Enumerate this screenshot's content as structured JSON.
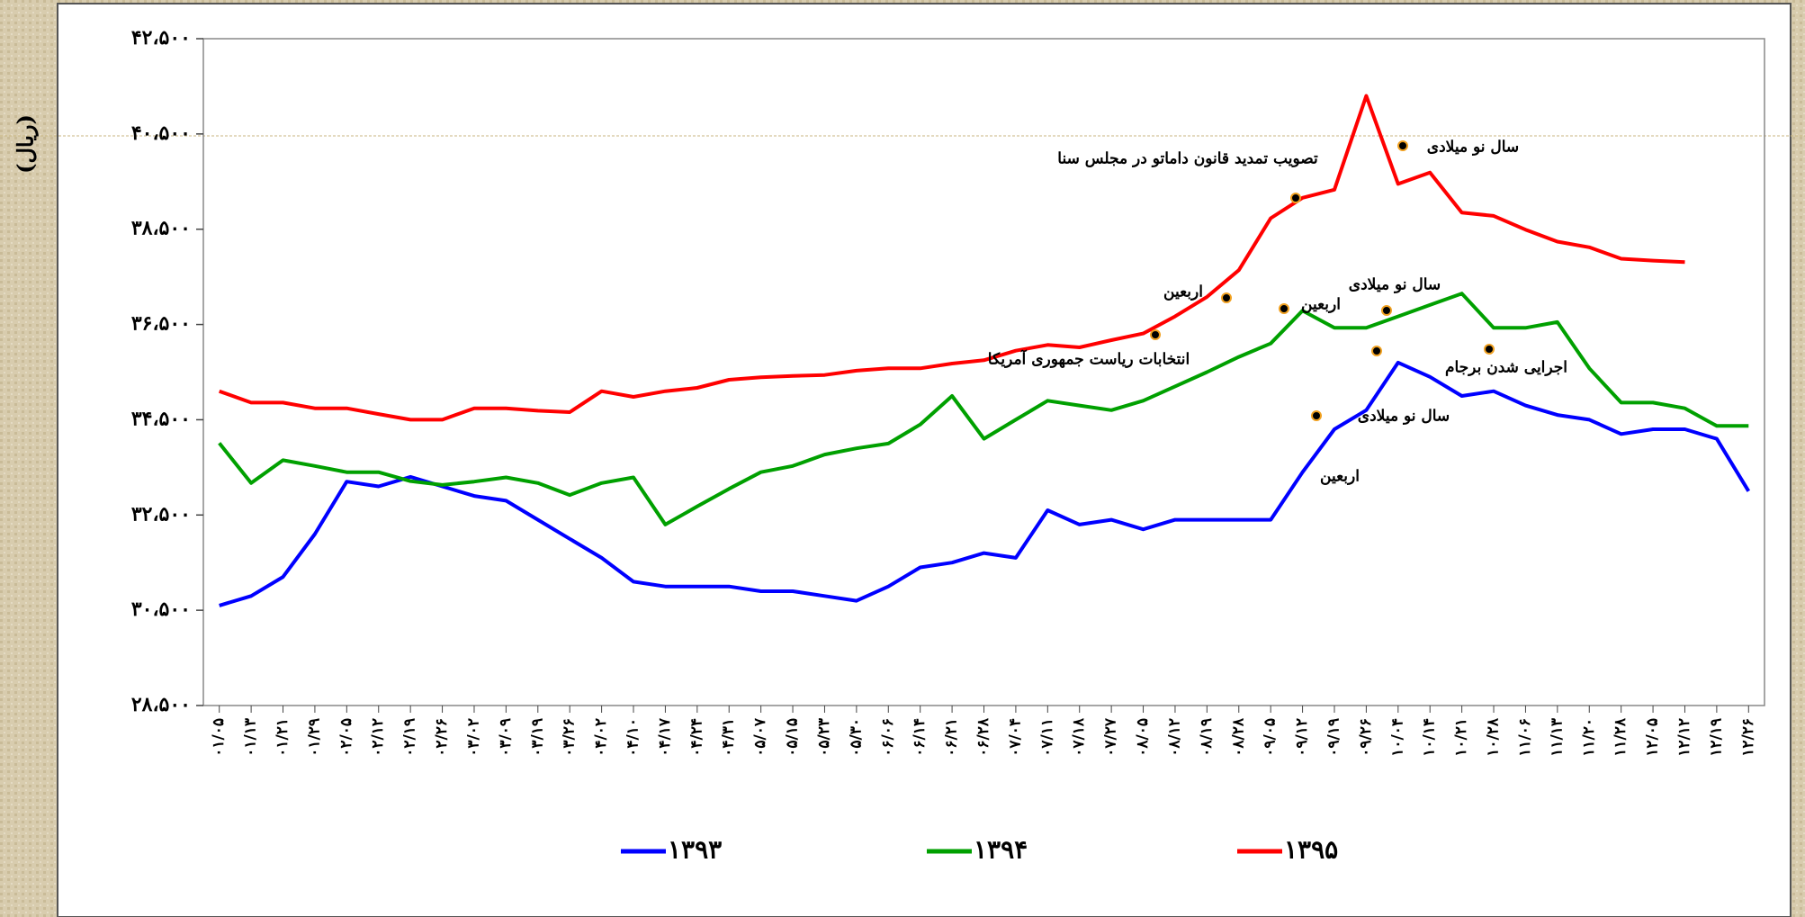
{
  "chart_data": {
    "type": "line",
    "ylabel": "(ریال)",
    "categories": [
      "۰۱/۰۵",
      "۰۱/۱۳",
      "۰۱/۲۱",
      "۰۱/۲۹",
      "۰۲/۰۵",
      "۰۲/۱۲",
      "۰۲/۱۹",
      "۰۲/۲۶",
      "۰۳/۰۲",
      "۰۳/۰۹",
      "۰۳/۱۹",
      "۰۳/۲۶",
      "۰۴/۰۲",
      "۰۴/۱۰",
      "۰۴/۱۷",
      "۰۴/۲۴",
      "۰۴/۳۱",
      "۰۵/۰۷",
      "۰۵/۱۵",
      "۰۵/۲۳",
      "۰۵/۳۰",
      "۰۶/۰۶",
      "۰۶/۱۴",
      "۰۶/۲۱",
      "۰۶/۲۸",
      "۰۷/۰۴",
      "۰۷/۱۱",
      "۰۷/۱۸",
      "۰۷/۲۷",
      "۰۸/۰۵",
      "۰۸/۱۲",
      "۰۸/۱۹",
      "۰۸/۲۸",
      "۰۹/۰۵",
      "۰۹/۱۲",
      "۰۹/۱۹",
      "۰۹/۲۶",
      "۱۰/۰۴",
      "۱۰/۱۴",
      "۱۰/۲۱",
      "۱۰/۲۸",
      "۱۱/۰۶",
      "۱۱/۱۳",
      "۱۱/۲۰",
      "۱۱/۲۸",
      "۱۲/۰۵",
      "۱۲/۱۲",
      "۱۲/۱۹",
      "۱۲/۲۶"
    ],
    "series": [
      {
        "name": "۱۳۹۳",
        "color": "#0000ff",
        "values": [
          30600,
          30800,
          31200,
          32100,
          33200,
          33100,
          33300,
          33100,
          32900,
          32800,
          32400,
          32000,
          31600,
          31100,
          31000,
          31000,
          31000,
          30900,
          30900,
          30800,
          30700,
          31000,
          31400,
          31500,
          31700,
          31600,
          32600,
          32300,
          32400,
          32200,
          32400,
          32400,
          32400,
          32400,
          33400,
          34300,
          34700,
          35700,
          35400,
          35000,
          35100,
          34800,
          34600,
          34500,
          34200,
          34300,
          34300,
          34100,
          33000
        ]
      },
      {
        "name": "۱۳۹۴",
        "color": "#00a000",
        "values": [
          34010,
          33170,
          33650,
          33530,
          33400,
          33400,
          33210,
          33130,
          33200,
          33290,
          33170,
          32920,
          33170,
          33290,
          32300,
          32680,
          33050,
          33400,
          33530,
          33770,
          33900,
          34000,
          34400,
          35000,
          34100,
          34500,
          34900,
          34800,
          34700,
          34900,
          35200,
          35500,
          35820,
          36100,
          36790,
          36430,
          36430,
          36670,
          36910,
          37150,
          36430,
          36430,
          36550,
          35580,
          34860,
          34860,
          34740,
          34370,
          34370
        ]
      },
      {
        "name": "۱۳۹۵",
        "color": "#ff0000",
        "values": [
          35100,
          34860,
          34860,
          34740,
          34740,
          34620,
          34500,
          34500,
          34740,
          34740,
          34690,
          34660,
          35100,
          34980,
          35100,
          35170,
          35340,
          35390,
          35420,
          35440,
          35530,
          35580,
          35580,
          35680,
          35750,
          35950,
          36070,
          36020,
          36170,
          36310,
          36670,
          37080,
          37640,
          38730,
          39160,
          39330,
          41300,
          39450,
          39690,
          38850,
          38780,
          38490,
          38240,
          38120,
          37880,
          37840,
          37810,
          null,
          null
        ]
      }
    ],
    "ylim": [
      28500,
      42500
    ],
    "yticks": [
      {
        "value": 28500,
        "label": "۲۸،۵۰۰"
      },
      {
        "value": 30500,
        "label": "۳۰،۵۰۰"
      },
      {
        "value": 32500,
        "label": "۳۲،۵۰۰"
      },
      {
        "value": 34500,
        "label": "۳۴،۵۰۰"
      },
      {
        "value": 36500,
        "label": "۳۶،۵۰۰"
      },
      {
        "value": 38500,
        "label": "۳۸،۵۰۰"
      },
      {
        "value": 40500,
        "label": "۴۰،۵۰۰"
      },
      {
        "value": 42500,
        "label": "۴۲،۵۰۰"
      }
    ],
    "legend": "bottom",
    "annotations": [
      "سال نو میلادی",
      "تصویب تمدید قانون داماتو در مجلس سنا",
      "اربعین",
      "انتخابات ریاست جمهوری آمریکا",
      "اربعین",
      "سال نو میلادی",
      "اجرایی شدن برجام",
      "سال نو میلادی",
      "اربعین"
    ]
  }
}
